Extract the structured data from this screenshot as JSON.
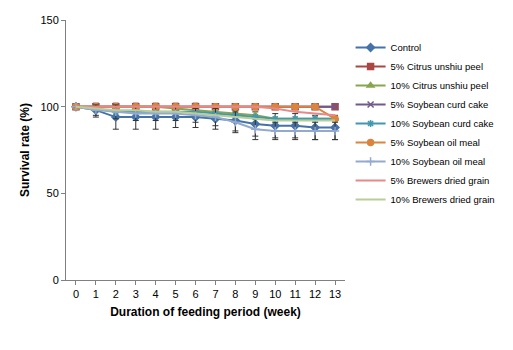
{
  "chart_data": {
    "type": "line",
    "x_label": "Duration of feeding period (week)",
    "y_label": "Survival rate (%)",
    "x": [
      0,
      1,
      2,
      3,
      4,
      5,
      6,
      7,
      8,
      9,
      10,
      11,
      12,
      13
    ],
    "xlim": [
      -0.5,
      13.5
    ],
    "xticks": [
      0,
      1,
      2,
      3,
      4,
      5,
      6,
      7,
      8,
      9,
      10,
      11,
      12,
      13
    ],
    "ylim": [
      0,
      150
    ],
    "yticks": [
      0,
      50,
      100,
      150
    ],
    "grid": false,
    "legend": "right",
    "series": [
      {
        "name": "Control",
        "color": "#4572a7",
        "marker": "diamond",
        "line_style": "solid",
        "values": [
          100,
          98,
          94,
          94,
          94,
          94,
          94,
          93,
          92,
          90,
          89,
          89,
          88,
          88
        ],
        "error": [
          0,
          4,
          7,
          7,
          7,
          6,
          6,
          6,
          6,
          7,
          7,
          7,
          7,
          7
        ]
      },
      {
        "name": "5% Citrus unshiu peel",
        "color": "#aa4643",
        "marker": "square",
        "line_style": "solid",
        "values": [
          100,
          100,
          100,
          100,
          100,
          100,
          100,
          100,
          100,
          100,
          100,
          100,
          100,
          100
        ],
        "error": [
          0,
          0,
          2,
          2,
          2,
          2,
          2,
          0,
          0,
          0,
          0,
          0,
          0,
          0
        ]
      },
      {
        "name": "10% Citrus unshiu peel",
        "color": "#89a54e",
        "marker": "triangle",
        "line_style": "solid",
        "values": [
          100,
          100,
          100,
          100,
          100,
          99,
          98,
          97,
          96,
          95,
          93,
          93,
          93,
          93
        ]
      },
      {
        "name": "5% Soybean curd cake",
        "color": "#71588f",
        "marker": "x",
        "line_style": "solid",
        "values": [
          100,
          100,
          100,
          100,
          100,
          100,
          100,
          100,
          100,
          100,
          100,
          100,
          100,
          100
        ]
      },
      {
        "name": "10% Soybean curd cake",
        "color": "#4198af",
        "marker": "asterisk",
        "line_style": "solid",
        "values": [
          100,
          99,
          97,
          97,
          97,
          97,
          97,
          96,
          95,
          94,
          93,
          93,
          93,
          93
        ]
      },
      {
        "name": "5% Soybean oil meal",
        "color": "#db843d",
        "marker": "circle",
        "line_style": "solid",
        "values": [
          100,
          100,
          100,
          100,
          100,
          100,
          100,
          100,
          100,
          100,
          100,
          100,
          100,
          93
        ]
      },
      {
        "name": "10% Soybean oil meal",
        "color": "#93a9cf",
        "marker": "plus",
        "line_style": "solid",
        "values": [
          100,
          98,
          97,
          96,
          96,
          96,
          95,
          94,
          91,
          87,
          86,
          86,
          86,
          86
        ],
        "error": [
          0,
          3,
          4,
          4,
          4,
          4,
          4,
          5,
          6,
          6,
          5,
          5,
          5,
          5
        ]
      },
      {
        "name": "5% Brewers dried grain",
        "color": "#e8888a",
        "marker": "none",
        "line_style": "solid",
        "values": [
          100,
          100,
          100,
          100,
          100,
          100,
          100,
          100,
          100,
          100,
          99,
          97,
          96,
          95
        ]
      },
      {
        "name": "10% Brewers dried grain",
        "color": "#b9cd96",
        "marker": "none",
        "line_style": "solid",
        "values": [
          100,
          99,
          98,
          98,
          97,
          97,
          96,
          95,
          94,
          93,
          92,
          92,
          92,
          92
        ]
      }
    ]
  }
}
